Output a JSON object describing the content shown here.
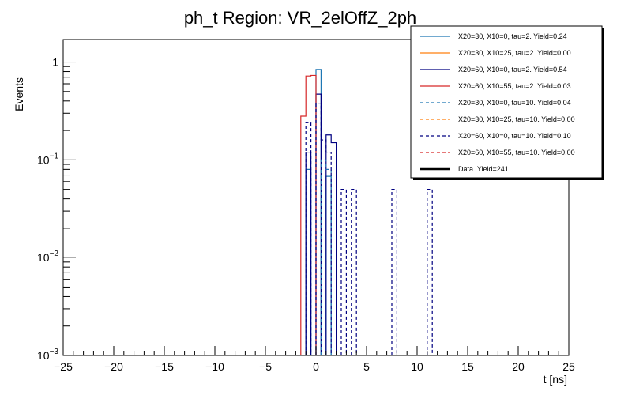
{
  "chart_data": {
    "type": "line",
    "title": "ph_t Region: VR_2elOffZ_2ph",
    "xlabel": "t [ns]",
    "ylabel": "Events",
    "xlim": [
      -25,
      25
    ],
    "ylim": [
      0.001,
      1.7
    ],
    "yscale": "log",
    "bin_width": 0.5,
    "x_ticks": [
      -25,
      -20,
      -15,
      -10,
      -5,
      0,
      5,
      10,
      15,
      20,
      25
    ],
    "x_tick_labels": [
      "−25",
      "−20",
      "−15",
      "−10",
      "−5",
      "0",
      "5",
      "10",
      "15",
      "20",
      "25"
    ],
    "y_ticks": [
      0.001,
      0.01,
      0.1,
      1
    ],
    "y_tick_labels": {
      "0.001": {
        "base": "10",
        "exp": "−3"
      },
      "0.01": {
        "base": "10",
        "exp": "−2"
      },
      "0.1": {
        "base": "10",
        "exp": "−1"
      },
      "1": {
        "base": "1",
        "exp": ""
      }
    },
    "legend_position": "top-right",
    "series": [
      {
        "name": "X20=30, X10=0, tau=2. Yield=0.24",
        "color": "#1f77b4",
        "style": "solid",
        "bins": [
          [
            -1.0,
            0.08
          ],
          [
            0.0,
            0.84
          ],
          [
            1.0,
            0.068
          ]
        ]
      },
      {
        "name": "X20=30, X10=25, tau=2. Yield=0.00",
        "color": "#ff7f0e",
        "style": "solid",
        "bins": []
      },
      {
        "name": "X20=60, X10=0, tau=2. Yield=0.54",
        "color": "#000080",
        "style": "solid",
        "bins": [
          [
            -1.0,
            0.12
          ],
          [
            0.0,
            0.47
          ],
          [
            1.0,
            0.18
          ],
          [
            1.5,
            0.15
          ]
        ]
      },
      {
        "name": "X20=60, X10=55, tau=2. Yield=0.03",
        "color": "#d62728",
        "style": "solid",
        "bins": [
          [
            -1.5,
            0.28
          ],
          [
            -1.0,
            0.72
          ],
          [
            -0.5,
            0.73
          ]
        ]
      },
      {
        "name": "X20=30, X10=0, tau=10. Yield=0.04",
        "color": "#1f77b4",
        "style": "dashed",
        "bins": [
          [
            0.5,
            0.1
          ],
          [
            1.0,
            0.08
          ]
        ]
      },
      {
        "name": "X20=30, X10=25, tau=10. Yield=0.00",
        "color": "#ff7f0e",
        "style": "dashed",
        "bins": []
      },
      {
        "name": "X20=60, X10=0, tau=10. Yield=0.10",
        "color": "#000080",
        "style": "dashed",
        "bins": [
          [
            -1.0,
            0.24
          ],
          [
            0.0,
            0.38
          ],
          [
            0.5,
            0.16
          ],
          [
            1.0,
            0.12
          ],
          [
            2.5,
            0.05
          ],
          [
            3.5,
            0.05
          ],
          [
            7.5,
            0.05
          ],
          [
            11.0,
            0.05
          ]
        ]
      },
      {
        "name": "X20=60, X10=55, tau=10. Yield=0.00",
        "color": "#d62728",
        "style": "dashed",
        "bins": []
      },
      {
        "name": "Data. Yield=241",
        "color": "#000000",
        "style": "thick",
        "bins": []
      }
    ]
  }
}
